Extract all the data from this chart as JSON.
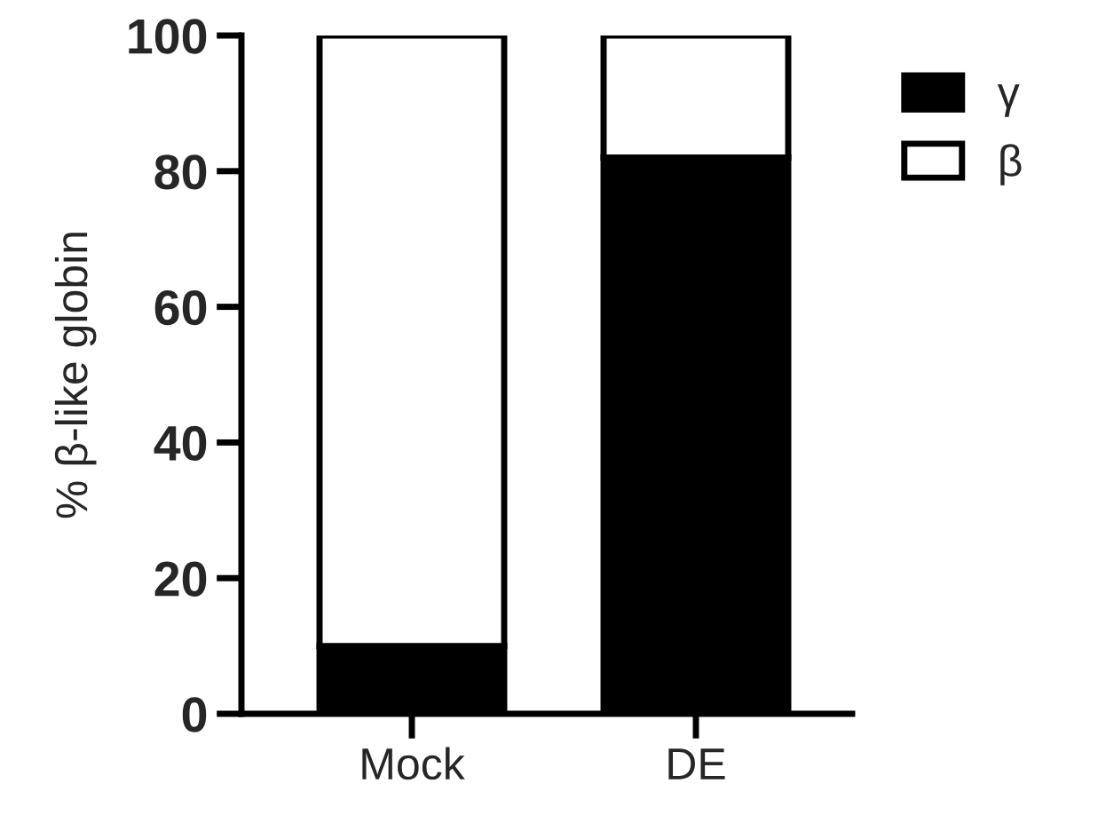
{
  "chart_data": {
    "type": "bar",
    "stacked": true,
    "ylabel": "% β-like globin",
    "categories": [
      "Mock",
      "DE"
    ],
    "series": [
      {
        "name": "γ",
        "color": "#000000",
        "values": [
          10,
          82
        ]
      },
      {
        "name": "β",
        "color": "#ffffff",
        "values": [
          90,
          18
        ]
      }
    ],
    "ylim": [
      0,
      100
    ],
    "yticks": [
      0,
      20,
      40,
      60,
      80,
      100
    ],
    "grid": false,
    "legend": "top right"
  }
}
